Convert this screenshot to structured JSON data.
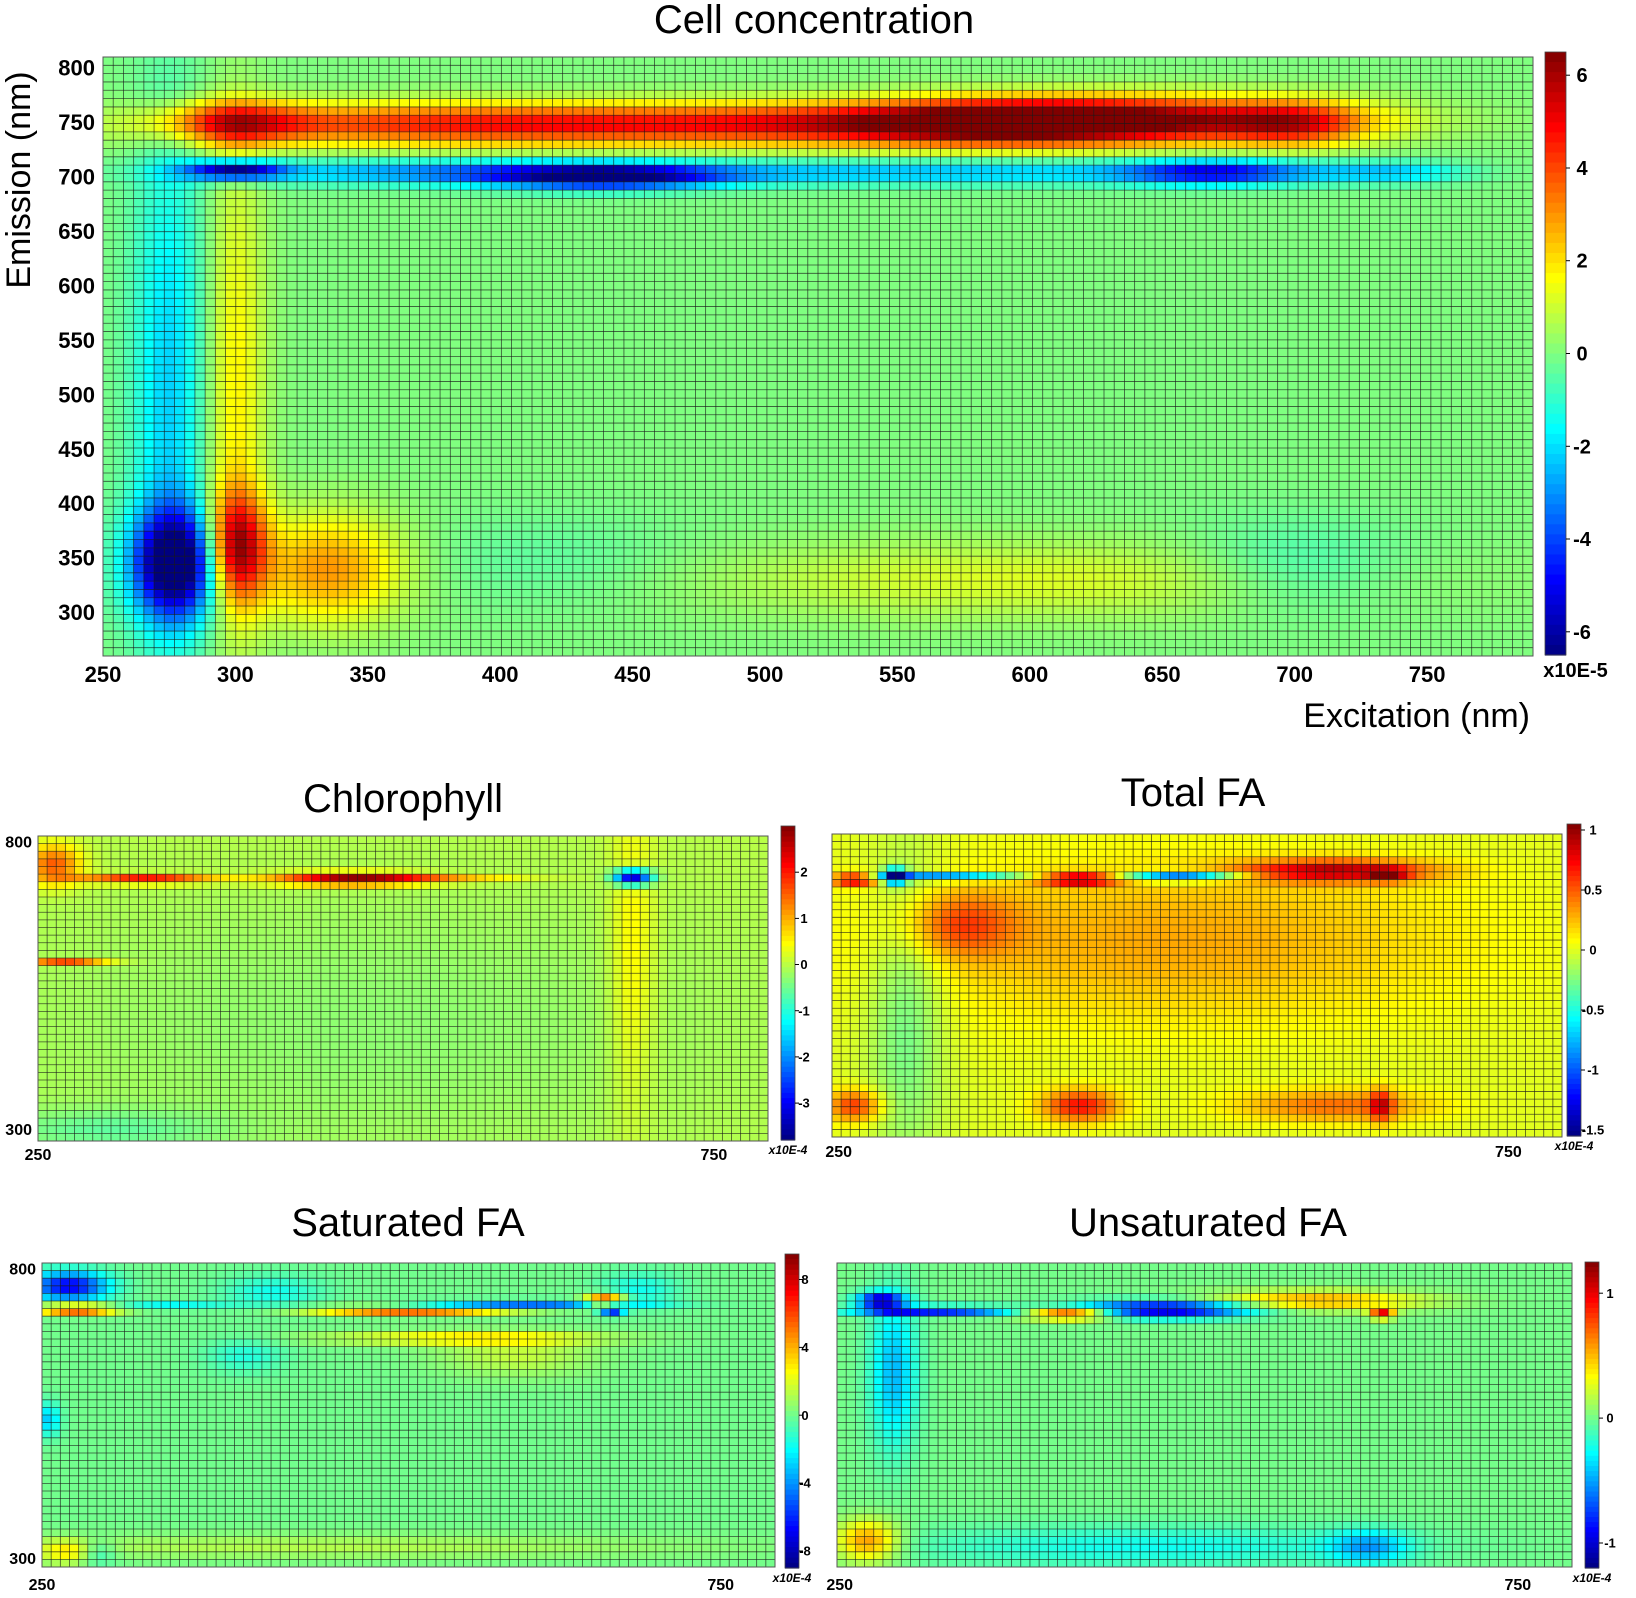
{
  "figure": {
    "description_colormap": "jet"
  },
  "chart_data": [
    {
      "id": "cell",
      "type": "heatmap",
      "title": "Cell concentration",
      "xlabel": "Excitation (nm)",
      "ylabel": "Emission (nm)",
      "xlim": [
        250,
        790
      ],
      "ylim": [
        260,
        810
      ],
      "xticks": [
        250,
        300,
        350,
        400,
        450,
        500,
        550,
        600,
        650,
        700,
        750
      ],
      "yticks": [
        300,
        350,
        400,
        450,
        500,
        550,
        600,
        650,
        700,
        750,
        800
      ],
      "colorbar": {
        "min": -6.5,
        "max": 6.5,
        "ticks": [
          6,
          4,
          2,
          0,
          -2,
          -4,
          -6
        ],
        "unit": "x10E-5"
      },
      "blobs": [
        {
          "x": 300,
          "y": 750,
          "sx": 18,
          "sy": 14,
          "v": 3.5
        },
        {
          "x": 355,
          "y": 748,
          "sx": 60,
          "sy": 14,
          "v": 3.2
        },
        {
          "x": 450,
          "y": 748,
          "sx": 60,
          "sy": 14,
          "v": 3.4
        },
        {
          "x": 540,
          "y": 748,
          "sx": 50,
          "sy": 14,
          "v": 3.0
        },
        {
          "x": 640,
          "y": 752,
          "sx": 55,
          "sy": 15,
          "v": 5.8
        },
        {
          "x": 590,
          "y": 750,
          "sx": 40,
          "sy": 14,
          "v": 4.0
        },
        {
          "x": 700,
          "y": 748,
          "sx": 18,
          "sy": 14,
          "v": 3.0
        },
        {
          "x": 440,
          "y": 700,
          "sx": 30,
          "sy": 8,
          "v": -5.5
        },
        {
          "x": 300,
          "y": 706,
          "sx": 12,
          "sy": 6,
          "v": -6.0
        },
        {
          "x": 380,
          "y": 704,
          "sx": 60,
          "sy": 8,
          "v": -3.0
        },
        {
          "x": 560,
          "y": 704,
          "sx": 80,
          "sy": 8,
          "v": -2.5
        },
        {
          "x": 670,
          "y": 704,
          "sx": 25,
          "sy": 8,
          "v": -4.5
        },
        {
          "x": 735,
          "y": 704,
          "sx": 20,
          "sy": 7,
          "v": -2.2
        },
        {
          "x": 275,
          "y": 500,
          "sx": 10,
          "sy": 170,
          "v": -2.2
        },
        {
          "x": 278,
          "y": 345,
          "sx": 12,
          "sy": 35,
          "v": -7.0
        },
        {
          "x": 300,
          "y": 360,
          "sx": 8,
          "sy": 35,
          "v": 5.5
        },
        {
          "x": 300,
          "y": 500,
          "sx": 8,
          "sy": 160,
          "v": 1.8
        },
        {
          "x": 335,
          "y": 340,
          "sx": 20,
          "sy": 35,
          "v": 3.0
        },
        {
          "x": 600,
          "y": 330,
          "sx": 90,
          "sy": 25,
          "v": 1.2
        },
        {
          "x": 700,
          "y": 340,
          "sx": 30,
          "sy": 30,
          "v": -1.0
        },
        {
          "x": 420,
          "y": 345,
          "sx": 40,
          "sy": 30,
          "v": -0.5
        }
      ]
    },
    {
      "id": "chl",
      "type": "heatmap",
      "title": "Chlorophyll",
      "xlim": [
        250,
        790
      ],
      "ylim": [
        280,
        810
      ],
      "xticks": [
        250,
        750
      ],
      "yticks": [
        300,
        800
      ],
      "colorbar": {
        "min": -3.8,
        "max": 3.0,
        "ticks": [
          2,
          1,
          0,
          -1,
          -2,
          -3
        ],
        "unit": "x10E-4"
      },
      "blobs": [
        {
          "x": 262,
          "y": 760,
          "sx": 14,
          "sy": 25,
          "v": 1.6
        },
        {
          "x": 330,
          "y": 735,
          "sx": 35,
          "sy": 6,
          "v": 2.2
        },
        {
          "x": 480,
          "y": 735,
          "sx": 40,
          "sy": 8,
          "v": 2.6
        },
        {
          "x": 540,
          "y": 735,
          "sx": 50,
          "sy": 5,
          "v": 1.0
        },
        {
          "x": 690,
          "y": 738,
          "sx": 10,
          "sy": 10,
          "v": -3.6
        },
        {
          "x": 690,
          "y": 600,
          "sx": 12,
          "sy": 200,
          "v": 0.6
        },
        {
          "x": 270,
          "y": 592,
          "sx": 22,
          "sy": 4,
          "v": 1.8
        },
        {
          "x": 300,
          "y": 300,
          "sx": 60,
          "sy": 25,
          "v": -0.5
        },
        {
          "x": 500,
          "y": 480,
          "sx": 200,
          "sy": 180,
          "v": -0.3
        }
      ]
    },
    {
      "id": "tfa",
      "type": "heatmap",
      "title": "Total FA",
      "xlim": [
        245,
        790
      ],
      "ylim": [
        275,
        810
      ],
      "xticks": [
        250,
        750
      ],
      "yticks": [],
      "colorbar": {
        "min": -1.55,
        "max": 1.05,
        "ticks": [
          1,
          0.5,
          0,
          -0.5,
          -1,
          -1.5
        ],
        "unit": "x10E-4"
      },
      "blobs": [
        {
          "x": 262,
          "y": 730,
          "sx": 12,
          "sy": 8,
          "v": 0.95
        },
        {
          "x": 292,
          "y": 735,
          "sx": 6,
          "sy": 10,
          "v": -1.4
        },
        {
          "x": 330,
          "y": 735,
          "sx": 40,
          "sy": 5,
          "v": -0.9
        },
        {
          "x": 430,
          "y": 730,
          "sx": 20,
          "sy": 8,
          "v": 0.95
        },
        {
          "x": 505,
          "y": 735,
          "sx": 30,
          "sy": 6,
          "v": -1.1
        },
        {
          "x": 620,
          "y": 745,
          "sx": 50,
          "sy": 14,
          "v": 0.85
        },
        {
          "x": 660,
          "y": 738,
          "sx": 10,
          "sy": 8,
          "v": 0.6
        },
        {
          "x": 340,
          "y": 650,
          "sx": 30,
          "sy": 40,
          "v": 0.45
        },
        {
          "x": 500,
          "y": 620,
          "sx": 150,
          "sy": 100,
          "v": 0.3
        },
        {
          "x": 262,
          "y": 330,
          "sx": 14,
          "sy": 20,
          "v": 0.6
        },
        {
          "x": 430,
          "y": 330,
          "sx": 20,
          "sy": 20,
          "v": 0.7
        },
        {
          "x": 620,
          "y": 330,
          "sx": 50,
          "sy": 20,
          "v": 0.45
        },
        {
          "x": 655,
          "y": 330,
          "sx": 6,
          "sy": 20,
          "v": 0.6
        },
        {
          "x": 300,
          "y": 500,
          "sx": 20,
          "sy": 200,
          "v": -0.3
        }
      ]
    },
    {
      "id": "sfa",
      "type": "heatmap",
      "title": "Saturated FA",
      "xlim": [
        250,
        790
      ],
      "ylim": [
        285,
        810
      ],
      "xticks": [
        250,
        750
      ],
      "yticks": [
        300,
        800
      ],
      "colorbar": {
        "min": -9,
        "max": 9.5,
        "ticks": [
          8,
          4,
          0,
          -4,
          -8
        ],
        "unit": "x10E-4"
      },
      "blobs": [
        {
          "x": 270,
          "y": 770,
          "sx": 20,
          "sy": 18,
          "v": -7.0
        },
        {
          "x": 275,
          "y": 730,
          "sx": 20,
          "sy": 6,
          "v": 8.0
        },
        {
          "x": 345,
          "y": 735,
          "sx": 30,
          "sy": 4,
          "v": -2.5
        },
        {
          "x": 420,
          "y": 760,
          "sx": 25,
          "sy": 20,
          "v": -1.8
        },
        {
          "x": 520,
          "y": 728,
          "sx": 50,
          "sy": 6,
          "v": 6.0
        },
        {
          "x": 600,
          "y": 738,
          "sx": 60,
          "sy": 5,
          "v": -5.0
        },
        {
          "x": 665,
          "y": 745,
          "sx": 10,
          "sy": 8,
          "v": 7.0
        },
        {
          "x": 670,
          "y": 728,
          "sx": 6,
          "sy": 6,
          "v": -7.0
        },
        {
          "x": 690,
          "y": 765,
          "sx": 20,
          "sy": 20,
          "v": -1.8
        },
        {
          "x": 560,
          "y": 680,
          "sx": 70,
          "sy": 8,
          "v": 3.0
        },
        {
          "x": 600,
          "y": 650,
          "sx": 40,
          "sy": 25,
          "v": 1.5
        },
        {
          "x": 255,
          "y": 540,
          "sx": 6,
          "sy": 20,
          "v": -3.0
        },
        {
          "x": 450,
          "y": 320,
          "sx": 200,
          "sy": 15,
          "v": 1.2
        },
        {
          "x": 290,
          "y": 310,
          "sx": 10,
          "sy": 15,
          "v": -2.0
        },
        {
          "x": 270,
          "y": 310,
          "sx": 15,
          "sy": 15,
          "v": 2.5
        },
        {
          "x": 400,
          "y": 650,
          "sx": 20,
          "sy": 20,
          "v": -1.5
        }
      ]
    },
    {
      "id": "ufa",
      "type": "heatmap",
      "title": "Unsaturated FA",
      "xlim": [
        248,
        790
      ],
      "ylim": [
        285,
        810
      ],
      "xticks": [
        250,
        750
      ],
      "yticks": [],
      "colorbar": {
        "min": -1.2,
        "max": 1.25,
        "ticks": [
          1,
          0,
          -1
        ],
        "unit": "x10E-4"
      },
      "blobs": [
        {
          "x": 280,
          "y": 745,
          "sx": 12,
          "sy": 10,
          "v": -1.0
        },
        {
          "x": 320,
          "y": 728,
          "sx": 40,
          "sy": 5,
          "v": -1.0
        },
        {
          "x": 420,
          "y": 722,
          "sx": 22,
          "sy": 7,
          "v": 1.0
        },
        {
          "x": 490,
          "y": 730,
          "sx": 45,
          "sy": 10,
          "v": -1.1
        },
        {
          "x": 600,
          "y": 745,
          "sx": 55,
          "sy": 12,
          "v": 0.55
        },
        {
          "x": 650,
          "y": 722,
          "sx": 6,
          "sy": 6,
          "v": 1.0
        },
        {
          "x": 290,
          "y": 620,
          "sx": 12,
          "sy": 90,
          "v": -0.45
        },
        {
          "x": 270,
          "y": 330,
          "sx": 16,
          "sy": 25,
          "v": 0.6
        },
        {
          "x": 480,
          "y": 320,
          "sx": 120,
          "sy": 25,
          "v": -0.25
        },
        {
          "x": 640,
          "y": 320,
          "sx": 20,
          "sy": 20,
          "v": -0.45
        }
      ]
    }
  ]
}
